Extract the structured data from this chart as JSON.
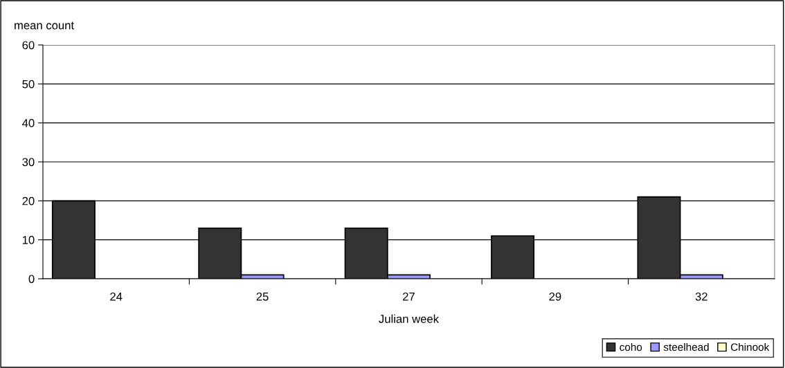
{
  "chart_data": {
    "type": "bar",
    "xlabel": "Julian week",
    "ylabel": "mean count",
    "categories": [
      "24",
      "25",
      "27",
      "29",
      "32"
    ],
    "series": [
      {
        "name": "coho",
        "color": "#333333",
        "values": [
          20,
          13,
          13,
          11,
          21
        ]
      },
      {
        "name": "steelhead",
        "color": "#9999ff",
        "values": [
          0,
          1,
          1,
          0,
          1
        ]
      },
      {
        "name": "Chinook",
        "color": "#ffffcc",
        "values": [
          0,
          0,
          0,
          0,
          0
        ]
      }
    ],
    "ylim": [
      0,
      60
    ],
    "yticks": [
      0,
      10,
      20,
      30,
      40,
      50,
      60
    ],
    "grid": "y",
    "legend": "bottom right"
  }
}
